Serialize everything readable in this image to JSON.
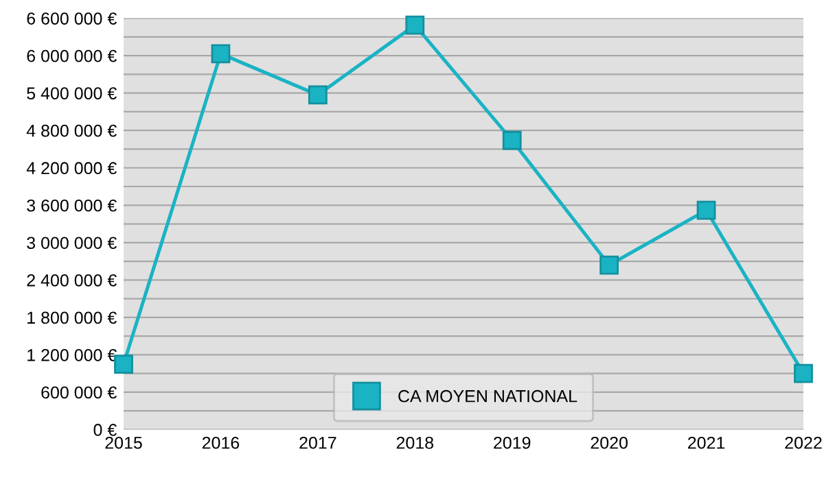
{
  "chart_data": {
    "type": "line",
    "categories": [
      "2015",
      "2016",
      "2017",
      "2018",
      "2019",
      "2020",
      "2021",
      "2022"
    ],
    "series": [
      {
        "name": "CA MOYEN NATIONAL",
        "color": "#1ab3c4",
        "values": [
          1050000,
          6030000,
          5370000,
          6490000,
          4640000,
          2640000,
          3520000,
          900000
        ]
      }
    ],
    "ylim": [
      0,
      6600000
    ],
    "yticks": [
      {
        "value": 0,
        "label": "0 €"
      },
      {
        "value": 300000,
        "label": null
      },
      {
        "value": 600000,
        "label": "600 000 €"
      },
      {
        "value": 900000,
        "label": null
      },
      {
        "value": 1200000,
        "label": "1 200 000 €"
      },
      {
        "value": 1500000,
        "label": null
      },
      {
        "value": 1800000,
        "label": "1 800 000 €"
      },
      {
        "value": 2100000,
        "label": null
      },
      {
        "value": 2400000,
        "label": "2 400 000 €"
      },
      {
        "value": 2700000,
        "label": null
      },
      {
        "value": 3000000,
        "label": "3 000 000 €"
      },
      {
        "value": 3300000,
        "label": null
      },
      {
        "value": 3600000,
        "label": "3 600 000 €"
      },
      {
        "value": 3900000,
        "label": null
      },
      {
        "value": 4200000,
        "label": "4 200 000 €"
      },
      {
        "value": 4500000,
        "label": null
      },
      {
        "value": 4800000,
        "label": "4 800 000 €"
      },
      {
        "value": 5100000,
        "label": null
      },
      {
        "value": 5400000,
        "label": "5 400 000 €"
      },
      {
        "value": 5700000,
        "label": null
      },
      {
        "value": 6000000,
        "label": "6 000 000 €"
      },
      {
        "value": 6300000,
        "label": null
      },
      {
        "value": 6600000,
        "label": "6 600 000 €"
      }
    ],
    "grid": "y",
    "legend": "bottom",
    "marker": "square",
    "line_style": "solid"
  }
}
